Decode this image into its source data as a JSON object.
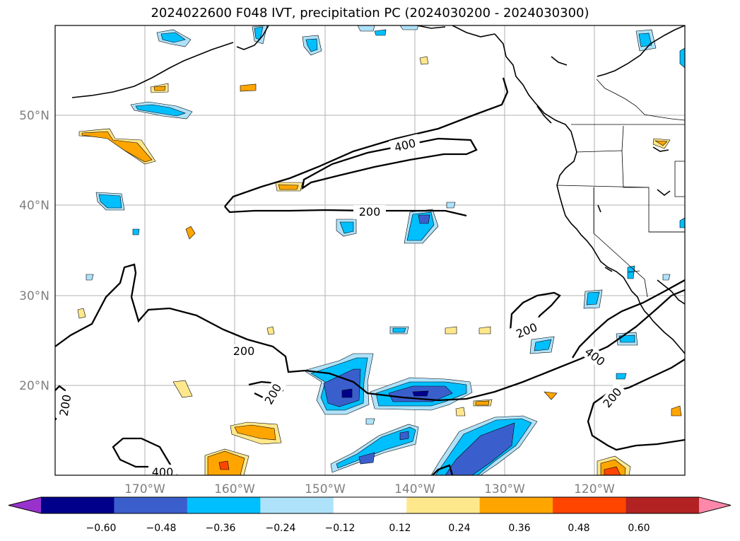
{
  "title": "2024022600 F048 IVT, precipitation PC (2024030200 - 2024030300)",
  "lat_labels": [
    "50°N",
    "40°N",
    "30°N",
    "20°N"
  ],
  "lon_labels": [
    "170°W",
    "160°W",
    "150°W",
    "140°W",
    "130°W",
    "120°W"
  ],
  "colorbar": {
    "colors": [
      "#9932CC",
      "#00008B",
      "#3A5FCD",
      "#00BFFF",
      "#AEE2FA",
      "#FFFFFF",
      "#FFE88C",
      "#FFA500",
      "#FF4500",
      "#B22222",
      "#FF88AA"
    ],
    "ticks": [
      "−0.60",
      "−0.48",
      "−0.36",
      "−0.24",
      "−0.12",
      "0.12",
      "0.24",
      "0.36",
      "0.48",
      "0.60"
    ]
  },
  "contour_labels": [
    "400",
    "200",
    "200",
    "200",
    "200",
    "400",
    "200",
    "200",
    "400"
  ]
}
